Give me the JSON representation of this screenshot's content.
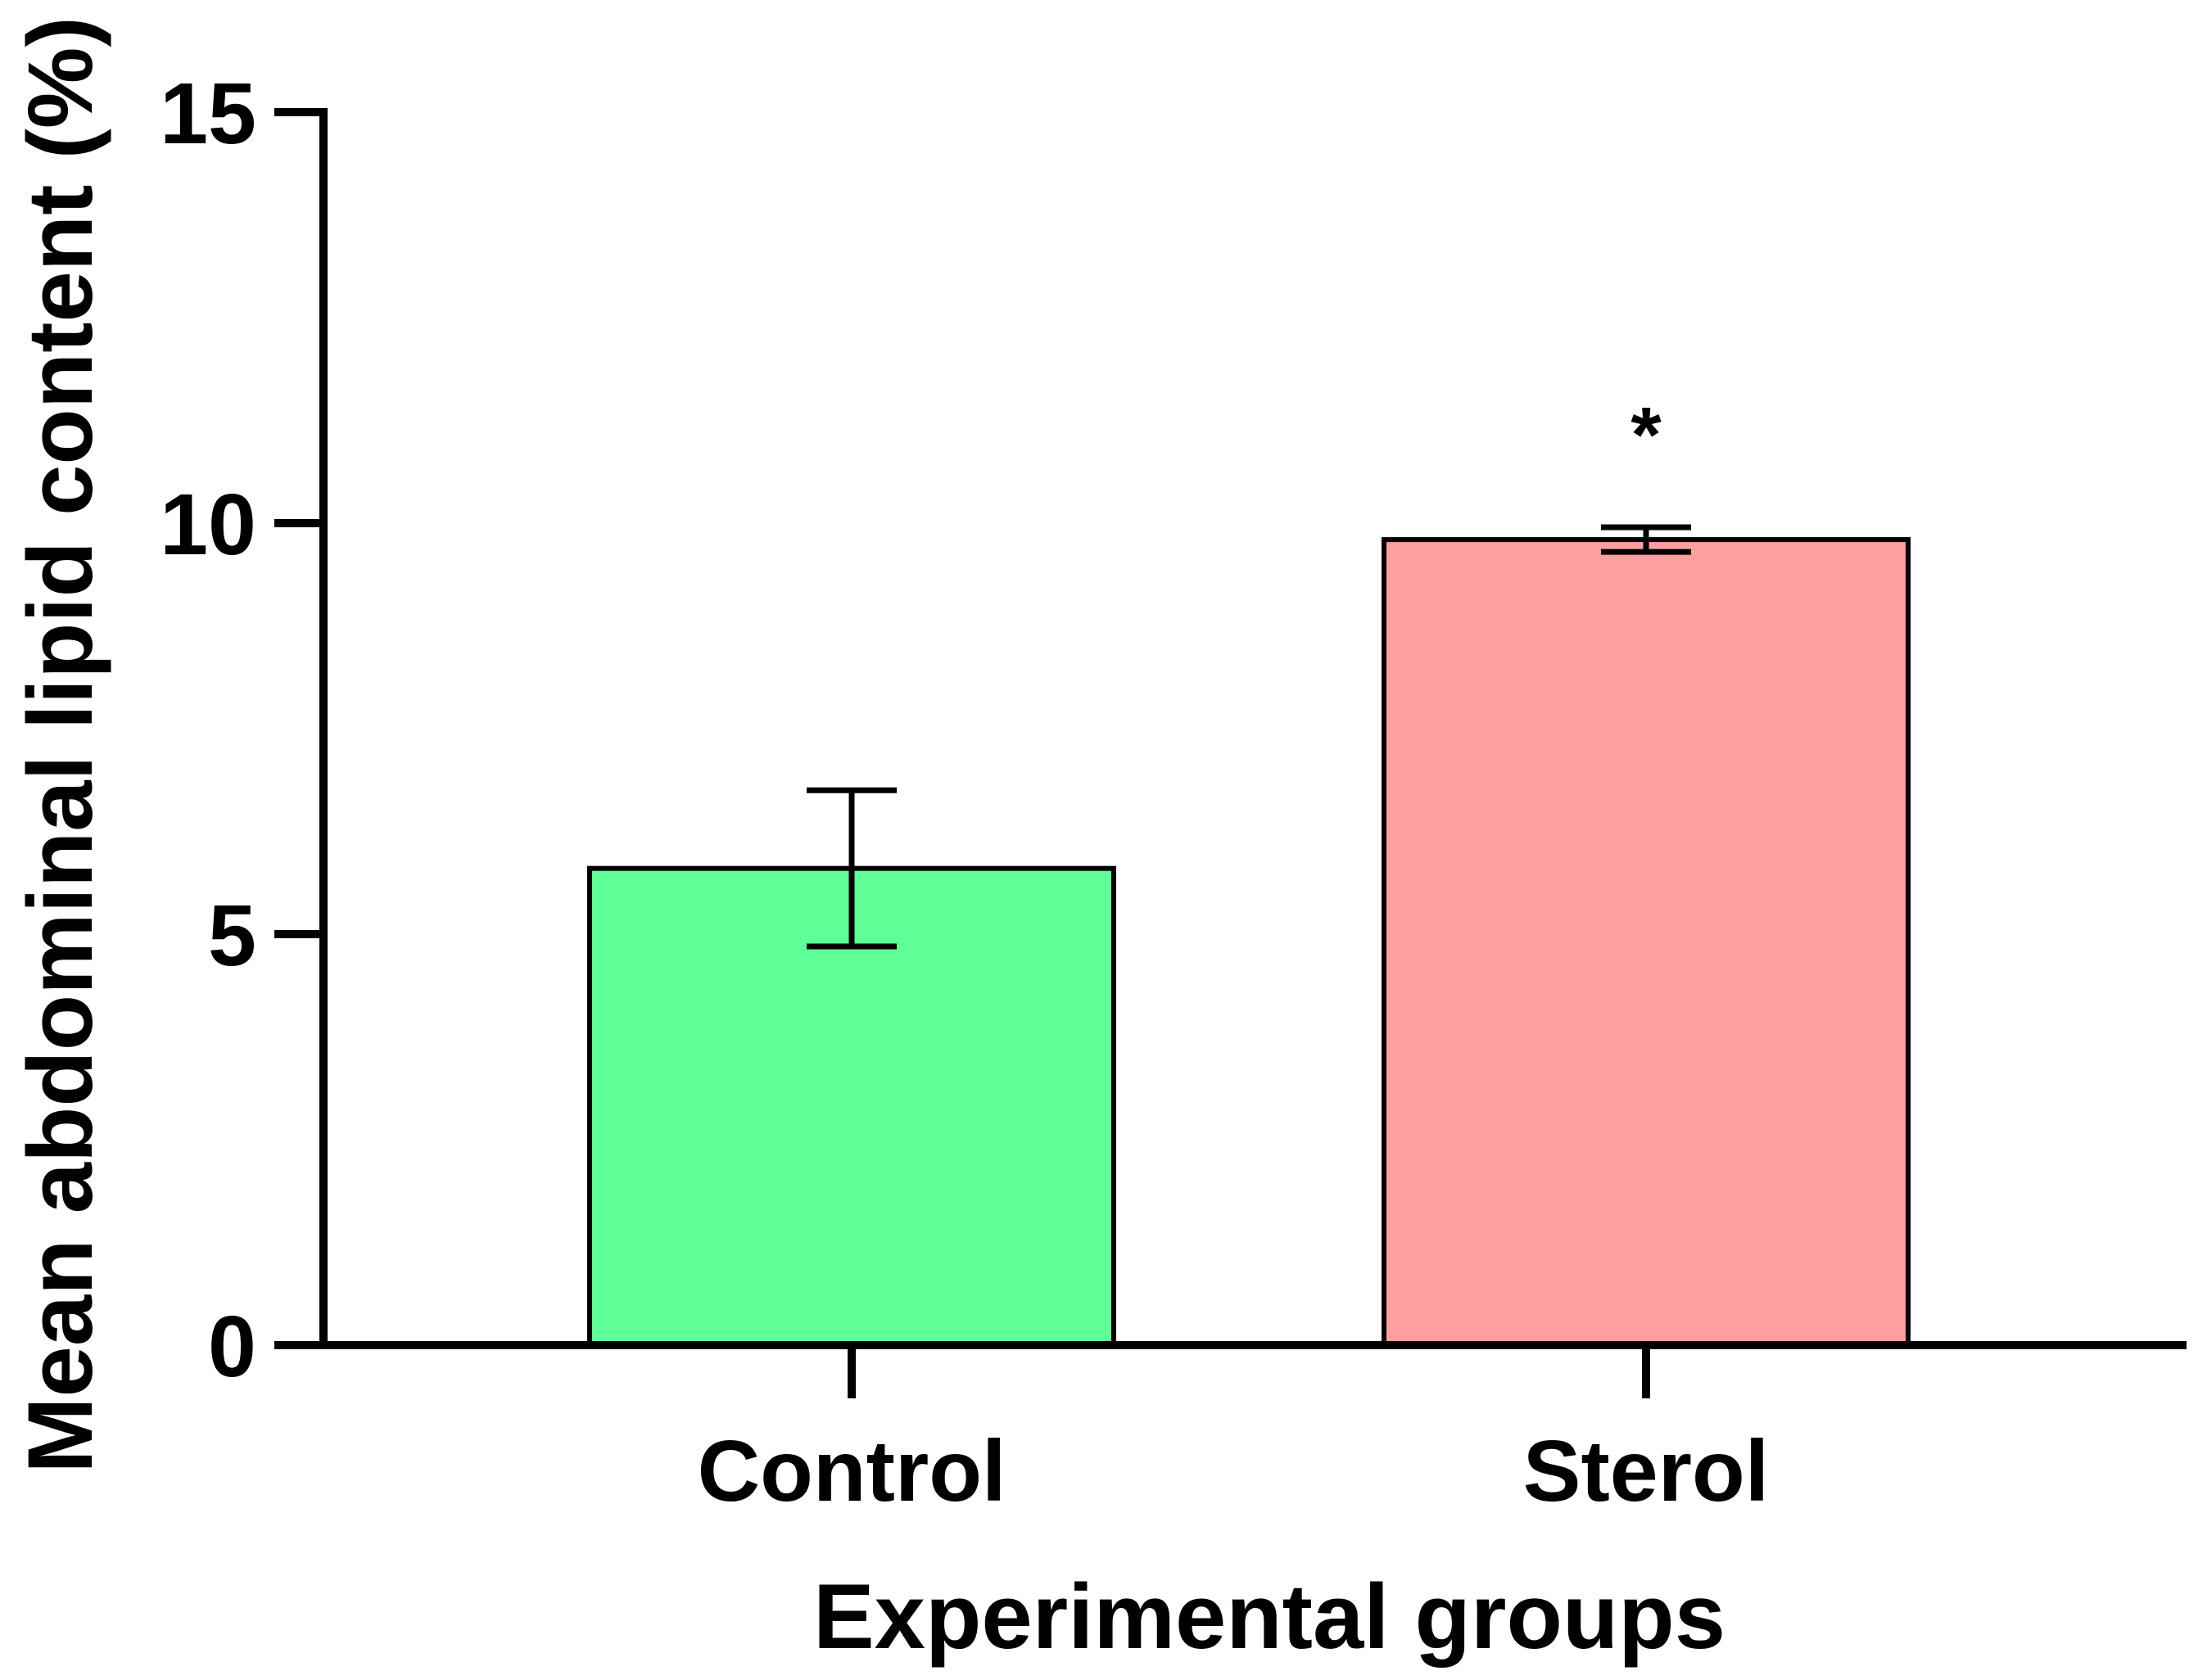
{
  "chart_data": {
    "type": "bar",
    "title": "",
    "xlabel": "Experimental groups",
    "ylabel": "Mean abdominal lipid content (%)",
    "ylim": [
      0,
      15
    ],
    "yticks": [
      0,
      5,
      10,
      15
    ],
    "categories": [
      "Control",
      "Sterol"
    ],
    "values": [
      5.8,
      9.8
    ],
    "error": [
      0.95,
      0.15
    ],
    "significance": [
      "",
      "*"
    ],
    "colors": [
      "#5eff96",
      "#ff9f9f"
    ],
    "grid": false,
    "legend": "none"
  }
}
